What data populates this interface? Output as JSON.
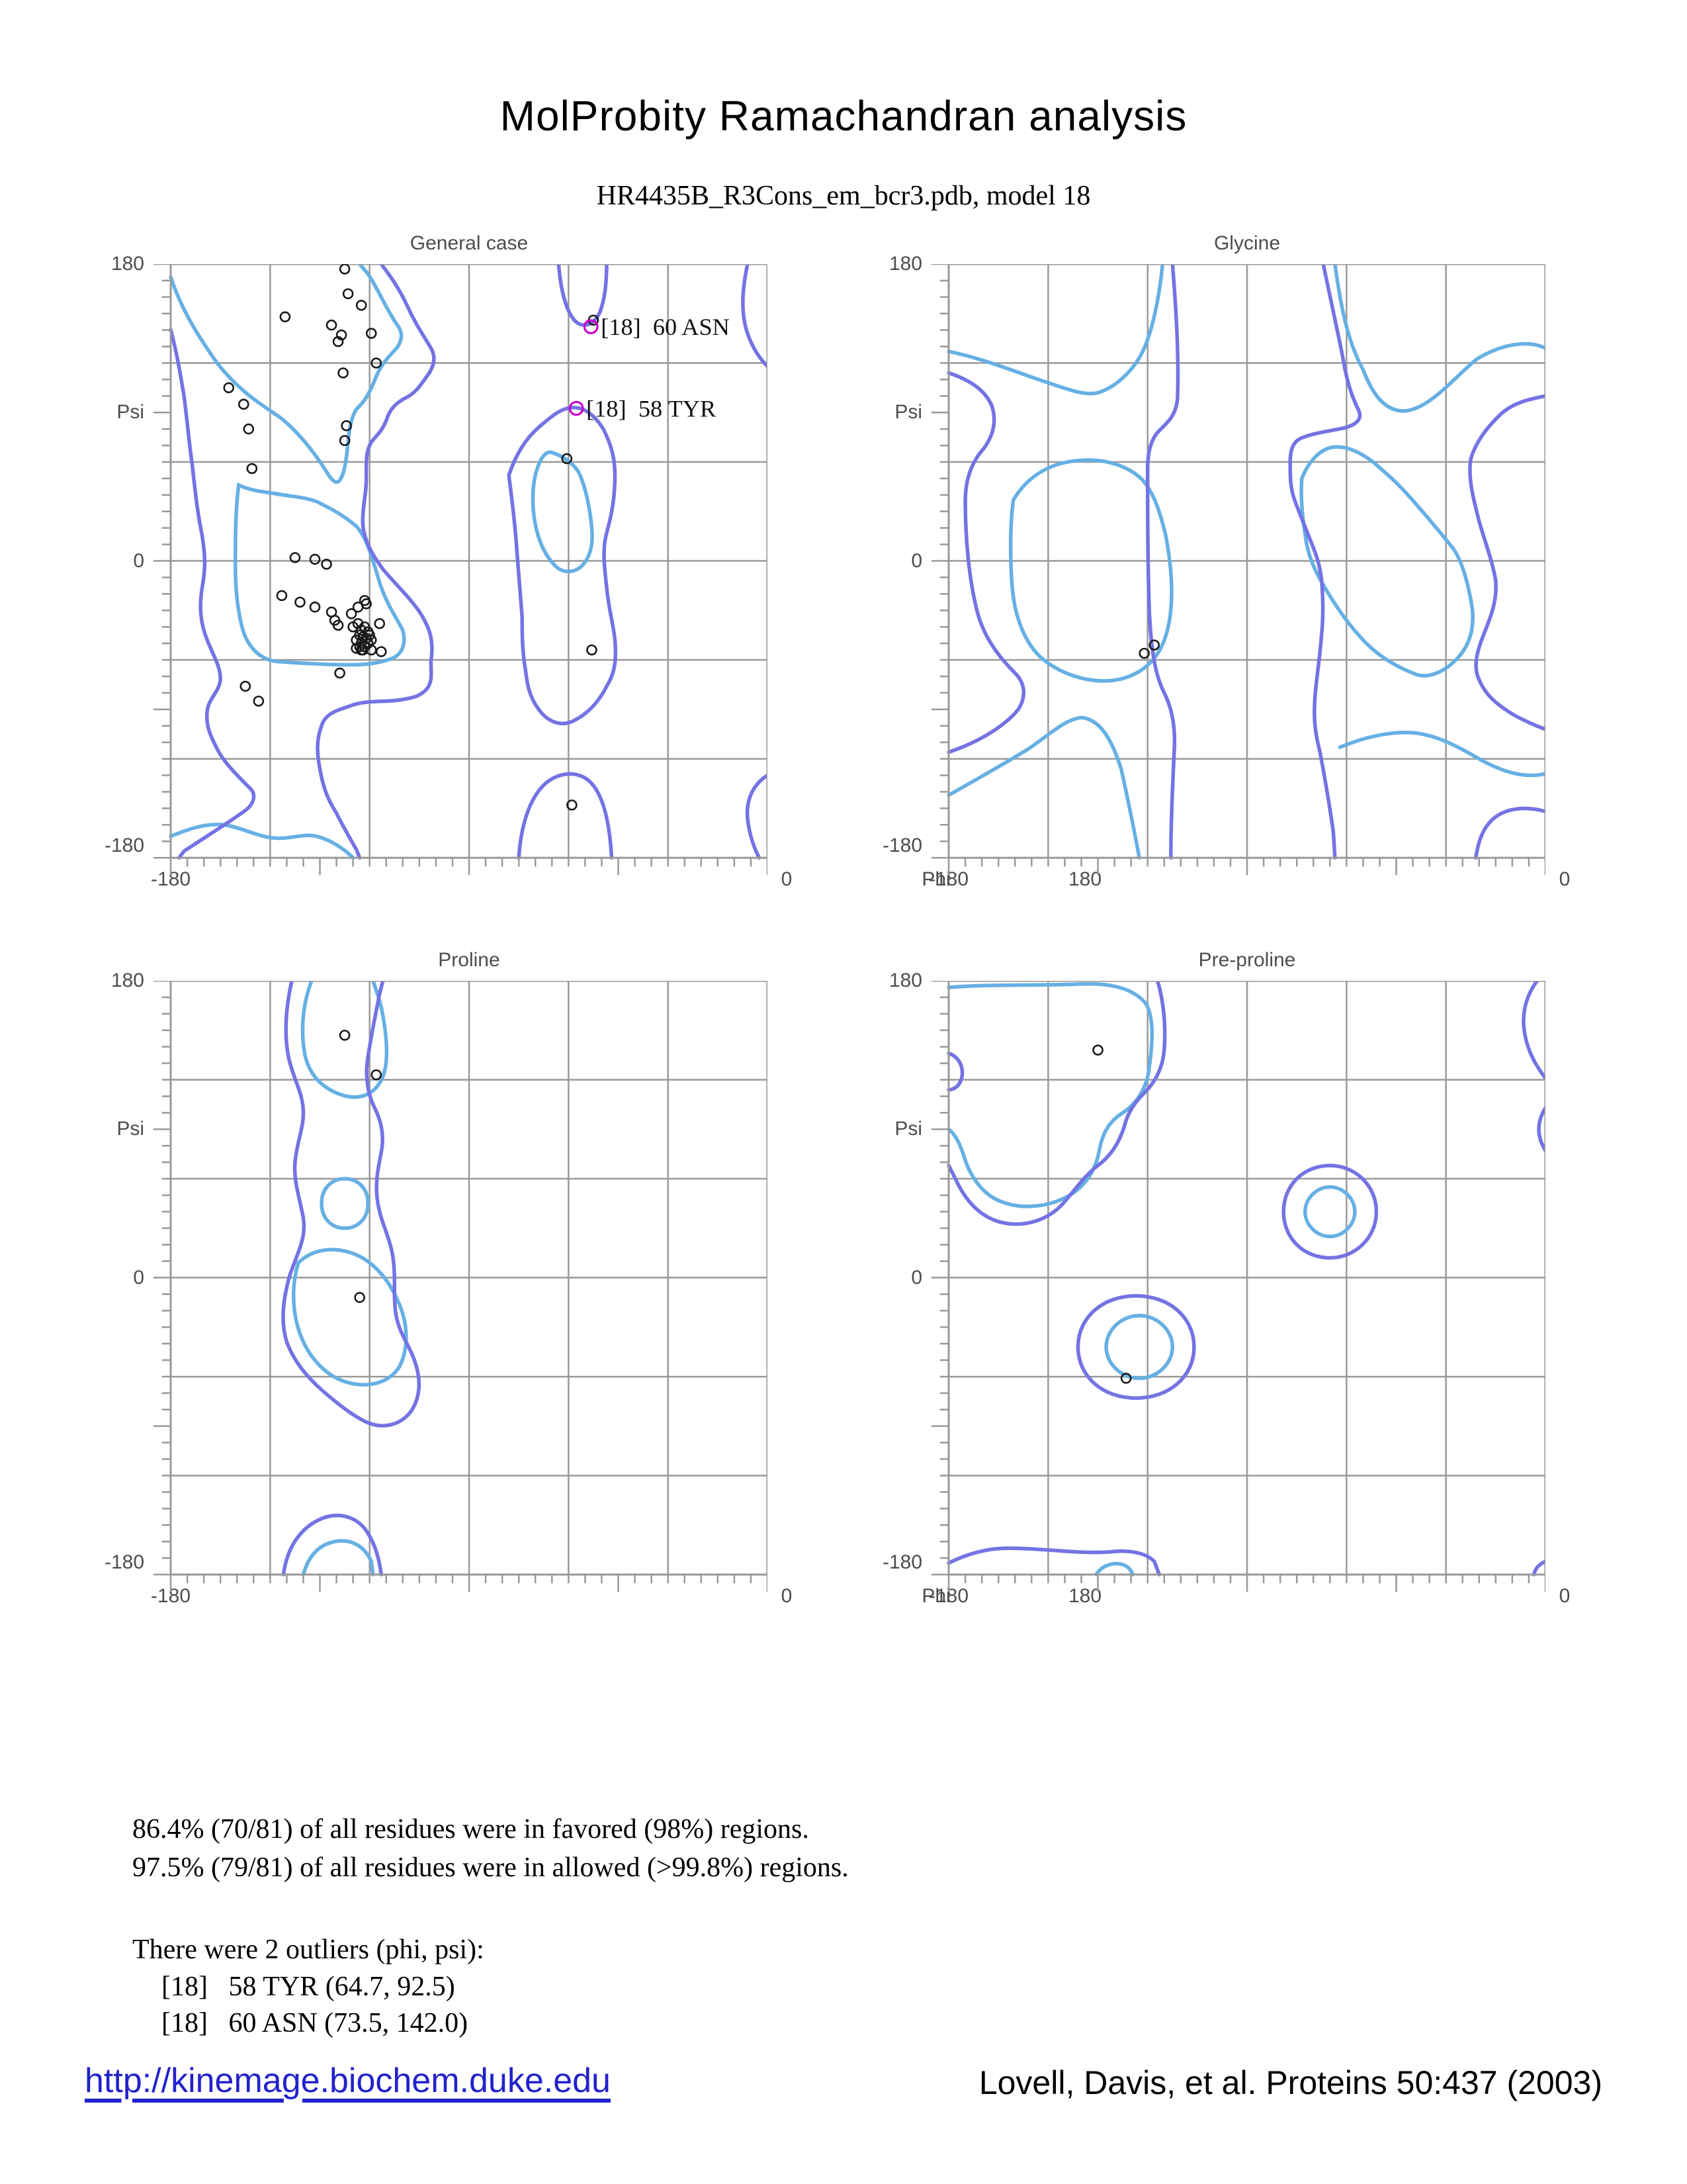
{
  "page": {
    "title": "MolProbity Ramachandran analysis",
    "subtitle": "HR4435B_R3Cons_em_bcr3.pdb, model 18"
  },
  "axis": {
    "y_top": "180",
    "y_psi": "Psi",
    "y_zero": "0",
    "y_bottom": "-180",
    "x_left": "-180",
    "x_zero": "0",
    "x_phi": "Phi",
    "x_right": "180"
  },
  "summary": {
    "favored_line": "86.4% (70/81) of all residues were in favored (98%) regions.",
    "allowed_line": "97.5% (79/81) of all residues were in allowed (>99.8%) regions.",
    "outlier_header": "There were 2 outliers (phi, psi):",
    "outlier_1": "[18]   58 TYR (64.7, 92.5)",
    "outlier_2": "[18]   60 ASN (73.5, 142.0)"
  },
  "footer": {
    "link": "http://kinemage.biochem.duke.edu",
    "citation": "Lovell, Davis, et al. Proteins 50:437 (2003)"
  },
  "colors": {
    "background": "#ffffff",
    "grid": "#999999",
    "axis_text": "#4d4d4d",
    "favored": "#66b0e4",
    "allowed": "#7473e4",
    "point": "#1a1a1a",
    "outlier": "#cc00cc",
    "link": "#2222cc"
  },
  "chart_data": [
    {
      "type": "scatter",
      "title": "General case",
      "xlabel": "Phi",
      "ylabel": "Psi",
      "xlim": [
        -180,
        180
      ],
      "ylim": [
        -180,
        180
      ],
      "grid_step": 60,
      "tick_step": 10,
      "grid": true,
      "points": [
        [
          -75,
          177
        ],
        [
          -73,
          162
        ],
        [
          -65,
          155
        ],
        [
          -111,
          148
        ],
        [
          -83,
          143
        ],
        [
          -77,
          137
        ],
        [
          -79,
          133
        ],
        [
          -59,
          138
        ],
        [
          -56,
          120
        ],
        [
          -76,
          114
        ],
        [
          -145,
          105
        ],
        [
          -136,
          95
        ],
        [
          -133,
          80
        ],
        [
          -74,
          82
        ],
        [
          -75,
          73
        ],
        [
          -131,
          56
        ],
        [
          59,
          62
        ],
        [
          75,
          146
        ],
        [
          -105,
          2
        ],
        [
          -93,
          1
        ],
        [
          -86,
          -2
        ],
        [
          -113,
          -21
        ],
        [
          -102,
          -25
        ],
        [
          -93,
          -28
        ],
        [
          -83,
          -31
        ],
        [
          -81,
          -36
        ],
        [
          -79,
          -39
        ],
        [
          -71,
          -32
        ],
        [
          -67,
          -28
        ],
        [
          -63,
          -24
        ],
        [
          -62,
          -26
        ],
        [
          -54,
          -38
        ],
        [
          -70,
          -40
        ],
        [
          -67,
          -38
        ],
        [
          -65,
          -42
        ],
        [
          -63,
          -40
        ],
        [
          -61,
          -43
        ],
        [
          -66,
          -45
        ],
        [
          -64,
          -46
        ],
        [
          -62,
          -47
        ],
        [
          -60,
          -45
        ],
        [
          -68,
          -48
        ],
        [
          -65,
          -50
        ],
        [
          -63,
          -52
        ],
        [
          -61,
          -50
        ],
        [
          -59,
          -48
        ],
        [
          -64,
          -54
        ],
        [
          -66,
          -52
        ],
        [
          -68,
          -53
        ],
        [
          -65,
          -54
        ],
        [
          -59,
          -54
        ],
        [
          -53,
          -55
        ],
        [
          -78,
          -68
        ],
        [
          -135,
          -76
        ],
        [
          -127,
          -85
        ],
        [
          74,
          -54
        ],
        [
          62,
          -148
        ]
      ],
      "outliers": [
        {
          "phi": 64.7,
          "psi": 92.5,
          "label": "[18]  58 TYR"
        },
        {
          "phi": 73.5,
          "psi": 142.0,
          "label": "[18]  60 ASN"
        }
      ],
      "contours": {
        "favored": [
          "M 0,8 C 6,26 14,40 28,60 C 42,78 56,86 66,93 C 76,101 86,113 94,126 C 97,131 100,134 102,131 C 105,127 106,118 107,108 C 108,97 110,89 114,86 C 118,82 121,76 124,68 C 128,59 133,55 137,50 C 140,45 140,41 136,36 C 130,27 125,15 119,6 L 114,0",
          "M 41,134 C 47,137 55,138 62,139 C 72,141 80,141 88,144 C 96,148 104,152 112,159 C 119,167 122,180 126,193 C 130,206 136,214 140,222 C 142,230 140,236 134,239 C 126,242 118,243 108,243 C 94,243 78,242 64,241 C 54,240 46,232 43,220 C 40,208 39,196 39,184 C 39,167 39,149 41,134 Z",
          "M 229,114 C 236,116 242,120 246,126 C 250,134 253,148 254,160 C 255,170 253,178 248,183 C 244,187 237,188 232,183 C 226,177 222,168 220,158 C 218,148 218,136 220,128 C 222,120 225,114 229,114 Z",
          "M 0,347 C 12,342 22,339 32,340 C 44,342 52,347 62,348 C 72,349 80,345 88,347 C 96,349 104,354 110,360"
        ],
        "allowed": [
          "M 0,40 C 4,55 6,68 8,80 C 10,95 11,108 13,122 C 15,140 16,150 19,165 C 21,178 21,185 19,196 C 17,208 18,218 22,228 C 26,238 30,244 30,252 C 29,260 23,263 22,271 C 21,280 24,286 28,294 C 32,302 40,310 48,318 C 52,322 50,328 44,332 C 36,338 20,348 8,356 L 5,360",
          "M 127,0 C 133,8 138,15 143,26 C 148,37 153,44 157,51 C 160,56 159,61 156,66 C 151,73 148,78 142,81 C 136,84 132,88 130,95 C 127,102 124,104 121,108 C 118,113 118,118 118,126 C 118,132 118,136 117,142 C 116,150 115,158 117,164 C 119,172 123,178 128,185 C 133,191 138,196 144,203 C 149,209 152,213 155,220 C 158,227 158,234 157,241 C 157,249 158,252 155,257 C 151,262 146,263 140,264 C 130,266 118,264 108,268 C 99,271 93,273 91,280 C 88,288 88,296 90,306 C 92,318 95,325 100,333 C 104,341 108,348 112,355 L 114,360",
          "M 234,0 C 235,12 237,24 242,32 C 247,40 255,38 259,29 C 262,21 263,10 263,0",
          "M 204,128 C 208,116 214,106 222,99 C 230,92 236,87 243,87 C 250,87 256,92 261,100 C 266,110 268,118 268,128 C 268,142 266,152 263,163 C 260,174 262,186 263,196 C 264,208 267,218 268,228 C 269,240 268,248 263,256 C 258,266 251,273 243,277 C 235,281 227,277 222,270 C 216,262 215,254 214,246 C 212,234 212,224 212,214 C 211,200 210,188 209,176 C 208,160 206,144 204,128 Z",
          "M 210,360 C 211,344 215,327 224,317 C 232,308 246,306 254,315 C 262,324 265,342 266,360",
          "M 348,0 C 346,10 344,22 346,34 C 348,46 354,56 360,62",
          "M 360,310 C 352,315 347,324 348,336 C 349,346 352,354 355,360"
        ]
      }
    },
    {
      "type": "scatter",
      "title": "Glycine",
      "xlabel": "Phi",
      "ylabel": "Psi",
      "xlim": [
        -180,
        180
      ],
      "ylim": [
        -180,
        180
      ],
      "grid_step": 60,
      "tick_step": 10,
      "grid": true,
      "points": [
        [
          -62,
          -56
        ],
        [
          -56,
          -51
        ]
      ],
      "outliers": [],
      "contours": {
        "favored": [
          "M 0,53 C 20,57 42,66 60,72 C 72,76 82,80 90,78 C 100,75 110,66 116,55 C 122,44 127,22 129,0",
          "M 39,143 C 48,128 62,120 80,119 C 94,118 108,122 117,131 C 124,139 128,152 131,165 C 134,181 136,200 133,217 C 130,234 122,246 106,251 C 90,256 68,250 55,238 C 44,227 39,210 38,192 C 37,175 37,158 39,143 Z",
          "M 0,322 C 14,314 32,304 48,294 C 60,286 70,276 80,275 C 92,276 99,290 104,306 C 108,324 112,344 115,360",
          "M 233,0 C 236,22 240,46 250,64 C 256,80 264,90 276,89 C 290,87 302,72 318,58 C 334,48 350,46 360,51",
          "M 213,130 C 217,120 224,112 232,111 C 240,110 248,114 256,120 C 264,127 270,132 277,140 C 286,150 296,162 304,172 C 310,180 314,196 316,210 C 317,222 314,232 306,240 C 298,248 288,252 280,248 C 270,244 260,238 252,230 C 242,220 234,208 228,198 C 222,188 218,180 216,170 C 214,158 212,144 213,130 Z",
          "M 236,293 C 248,288 262,284 276,284 C 292,284 306,292 320,300 C 334,308 348,312 360,309"
        ],
        "allowed": [
          "M 135,0 C 137,25 139,55 138,82 C 137,92 132,96 127,101 C 122,106 120,114 120,124 C 120,150 120,180 121,210 C 122,232 124,248 130,260 C 135,270 137,282 136,296 C 135,318 134,340 134,360",
          "M 0,66 C 12,70 22,76 26,86 C 29,95 27,104 21,112 C 14,120 10,130 10,144 C 10,165 12,190 17,210 C 21,226 30,238 40,248 C 46,254 47,262 42,270 C 34,280 20,288 8,293 L 0,296",
          "M 226,0 C 230,20 235,42 238,58 C 240,70 243,80 247,88 C 250,94 246,97 240,99 C 232,101 222,102 214,105 C 208,107 206,112 206,120 C 206,130 206,136 209,144 C 212,152 216,162 220,172 C 223,180 224,184 225,192 C 226,204 226,214 225,224 C 224,238 222,250 221,262 C 220,276 221,284 224,296 C 227,312 230,330 232,344 L 233,360",
          "M 360,80 C 350,82 340,84 332,92 C 324,100 318,108 315,118 C 313,130 317,144 320,156 C 324,170 328,180 330,192 C 331,204 327,214 323,224 C 319,234 316,244 320,252 C 324,262 332,268 342,274 C 348,277 354,280 360,282",
          "M 318,360 C 320,346 325,336 336,332 C 344,329 354,330 360,332"
        ]
      }
    },
    {
      "type": "scatter",
      "title": "Proline",
      "xlabel": "Phi",
      "ylabel": "Psi",
      "xlim": [
        -180,
        180
      ],
      "ylim": [
        -180,
        180
      ],
      "grid_step": 60,
      "tick_step": 10,
      "grid": true,
      "points": [
        [
          -75,
          147
        ],
        [
          -56,
          123
        ],
        [
          -66,
          -12
        ]
      ],
      "outliers": [],
      "contours": {
        "favored": [
          "M 85,0 C 80,13 78,29 81,45 C 84,59 94,67 106,70 C 116,72 124,68 128,58 C 132,48 130,30 127,16 C 125,8 123,3 122,0",
          "M 105,120 C 113,120 119,126 119,135 C 119,144 113,150 105,150 C 97,150 91,144 91,135 C 91,126 97,120 105,120 Z",
          "M 77,171 C 85,163 97,161 109,165 C 121,169 131,180 137,194 C 143,207 144,222 138,234 C 131,245 117,247 105,243 C 93,239 83,228 78,214 C 73,200 73,184 77,171 Z",
          "M 80,360 C 83,349 89,342 99,340 C 109,338 117,343 121,352 L 122,360"
        ],
        "allowed": [
          "M 73,0 C 70,14 68,30 71,46 C 74,60 80,68 80,80 C 80,90 76,98 75,110 C 74,122 78,132 80,144 C 82,156 76,166 72,178 C 68,192 66,206 70,219 C 74,230 82,240 91,248 C 100,256 110,264 119,268 C 129,272 139,269 145,261 C 151,252 151,241 147,230 C 144,221 138,214 136,203 C 134,192 136,180 134,167 C 132,155 127,147 125,135 C 123,124 125,114 127,104 C 129,94 127,85 123,77 C 119,69 117,58 119,46 C 121,33 124,18 126,8 L 128,0",
          "M 68,360 C 70,345 77,333 89,327 C 101,321 113,325 119,335 C 124,343 126,352 127,360"
        ]
      }
    },
    {
      "type": "scatter",
      "title": "Pre-proline",
      "xlabel": "Phi",
      "ylabel": "Psi",
      "xlim": [
        -180,
        180
      ],
      "ylim": [
        -180,
        180
      ],
      "grid_step": 60,
      "tick_step": 10,
      "grid": true,
      "points": [
        [
          -90,
          138
        ],
        [
          -73,
          -61
        ]
      ],
      "outliers": [],
      "contours": {
        "favored": [
          "M 0,4 C 25,2 52,3 78,2 C 98,1 112,5 119,14 C 124,22 123,38 121,52 C 120,64 114,74 105,80 C 97,85 93,92 91,102 C 89,114 83,124 73,130 C 61,137 45,139 32,134 C 21,130 14,120 10,109 C 7,99 4,93 0,90",
          "M 230,125 C 238,125 245,132 245,140 C 245,148 238,155 230,155 C 222,155 215,148 215,140 C 215,132 222,125 230,125 Z",
          "M 115,203 C 126,203 135,212 135,222 C 135,232 126,241 115,241 C 104,241 95,232 95,222 C 95,212 104,203 115,203 Z",
          "M 89,360 C 92,355 99,352 105,354 C 108,355 110,357 111,360"
        ],
        "allowed": [
          "M 126,0 C 130,14 131,28 130,42 C 129,54 124,62 118,68 C 112,74 108,80 106,88 C 103,98 98,106 90,112 C 82,118 76,127 69,135 C 59,146 44,150 30,146 C 17,142 9,131 4,120 L 0,112",
          "M 0,44 C 6,46 9,52 8,58 C 7,63 4,66 0,66",
          "M 230,112 C 245,112 258,124 258,140 C 258,156 245,168 230,168 C 214,168 202,156 202,140 C 202,124 214,112 230,112 Z",
          "M 113,191 C 133,191 148,204 148,222 C 148,240 133,253 113,253 C 93,253 78,240 78,222 C 78,204 93,191 113,191 Z",
          "M 355,0 C 349,8 346,18 347,28 C 348,40 353,50 360,59",
          "M 360,77 C 357,82 356,86 356,90 C 356,94 357,98 360,103",
          "M 0,353 C 10,348 22,344 36,344 C 58,344 80,348 100,346 C 112,345 120,348 124,352 L 127,360",
          "M 360,352 C 356,354 354,356 353,360"
        ]
      }
    }
  ]
}
